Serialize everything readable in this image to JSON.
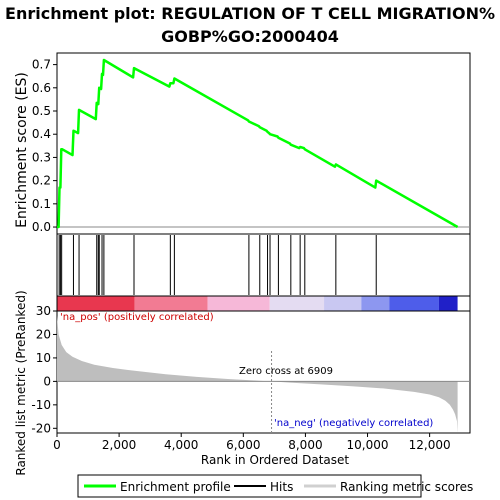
{
  "chart_data": {
    "type": "line",
    "title_line1": "Enrichment plot: REGULATION OF T CELL MIGRATION%",
    "title_line2": "GOBP%GO:2000404",
    "es_panel": {
      "ylabel": "Enrichment score (ES)",
      "ylim": [
        -0.03,
        0.75
      ],
      "yticks": [
        "0.0",
        "0.1",
        "0.2",
        "0.3",
        "0.4",
        "0.5",
        "0.6",
        "0.7"
      ],
      "ytick_values": [
        0.0,
        0.1,
        0.2,
        0.3,
        0.4,
        0.5,
        0.6,
        0.7
      ],
      "series": [
        {
          "name": "Enrichment profile",
          "color": "#00ff00",
          "x": [
            0,
            50,
            80,
            110,
            140,
            170,
            500,
            530,
            680,
            710,
            1250,
            1280,
            1330,
            1360,
            1420,
            1450,
            1480,
            1510,
            2450,
            2480,
            3620,
            3650,
            3750,
            3780,
            6150,
            6180,
            6500,
            6530,
            6750,
            6780,
            6830,
            6860,
            7100,
            7130,
            7500,
            7530,
            7800,
            7830,
            7950,
            7980,
            8950,
            8980,
            10250,
            10280,
            12900
          ],
          "y": [
            0.0,
            0.0,
            0.17,
            0.17,
            0.335,
            0.335,
            0.31,
            0.415,
            0.405,
            0.505,
            0.465,
            0.535,
            0.53,
            0.6,
            0.595,
            0.66,
            0.655,
            0.72,
            0.645,
            0.685,
            0.605,
            0.62,
            0.62,
            0.64,
            0.46,
            0.455,
            0.435,
            0.43,
            0.415,
            0.41,
            0.405,
            0.4,
            0.39,
            0.385,
            0.36,
            0.355,
            0.34,
            0.345,
            0.34,
            0.335,
            0.26,
            0.27,
            0.17,
            0.2,
            0.0
          ]
        }
      ]
    },
    "hits_panel": {
      "hit_ranks": [
        70,
        110,
        150,
        530,
        710,
        1280,
        1330,
        1360,
        1450,
        1510,
        2480,
        3650,
        3780,
        6180,
        6530,
        6780,
        6860,
        7130,
        7530,
        7830,
        7980,
        8980,
        10280
      ]
    },
    "heatmap_band": {
      "segments": [
        {
          "start": 0,
          "end": 2500,
          "color": "#e8374f"
        },
        {
          "start": 2500,
          "end": 4850,
          "color": "#f27b93"
        },
        {
          "start": 4850,
          "end": 6850,
          "color": "#f6b8d8"
        },
        {
          "start": 6850,
          "end": 8600,
          "color": "#e4dcf2"
        },
        {
          "start": 8600,
          "end": 9800,
          "color": "#c9c8f2"
        },
        {
          "start": 9800,
          "end": 10700,
          "color": "#8d97f0"
        },
        {
          "start": 10700,
          "end": 12300,
          "color": "#4e5dea"
        },
        {
          "start": 12300,
          "end": 12900,
          "color": "#2020c8"
        }
      ]
    },
    "metric_panel": {
      "ylabel": "Ranked list metric (PreRanked)",
      "ylim": [
        -22,
        30
      ],
      "yticks": [
        "30",
        "20",
        "10",
        "0",
        "-10",
        "-20"
      ],
      "ytick_values": [
        30,
        20,
        10,
        0,
        -10,
        -20
      ],
      "fill_color": "#bebebe",
      "x": [
        0,
        50,
        150,
        300,
        500,
        800,
        1200,
        1800,
        2500,
        3500,
        4500,
        5500,
        6500,
        6909,
        7500,
        8500,
        9500,
        10500,
        11500,
        12000,
        12300,
        12500,
        12650,
        12750,
        12820,
        12880,
        12900
      ],
      "y": [
        28,
        20,
        15.5,
        12.5,
        10.5,
        8.7,
        7.1,
        5.7,
        4.5,
        3.0,
        1.9,
        1.0,
        0.3,
        0,
        -0.5,
        -1.3,
        -2.1,
        -3.0,
        -4.5,
        -5.6,
        -6.8,
        -8.2,
        -10,
        -12,
        -14,
        -17,
        -22
      ],
      "label_pos": "'na_pos' (positively correlated)",
      "label_neg": "'na_neg' (negatively correlated)",
      "zero_cross_label": "Zero cross at 6909",
      "zero_cross": 6909
    },
    "x_axis": {
      "xlabel": "Rank in Ordered Dataset",
      "xlim": [
        0,
        13300
      ],
      "xticks": [
        "0",
        "2,000",
        "4,000",
        "6,000",
        "8,000",
        "10,000",
        "12,000"
      ],
      "xtick_values": [
        0,
        2000,
        4000,
        6000,
        8000,
        10000,
        12000
      ]
    },
    "legend": {
      "position": "bottom",
      "items": [
        {
          "label": "Enrichment profile",
          "color": "#00ff00"
        },
        {
          "label": "Hits",
          "color": "#000000"
        },
        {
          "label": "Ranking metric scores",
          "color": "#bebebe"
        }
      ]
    }
  }
}
